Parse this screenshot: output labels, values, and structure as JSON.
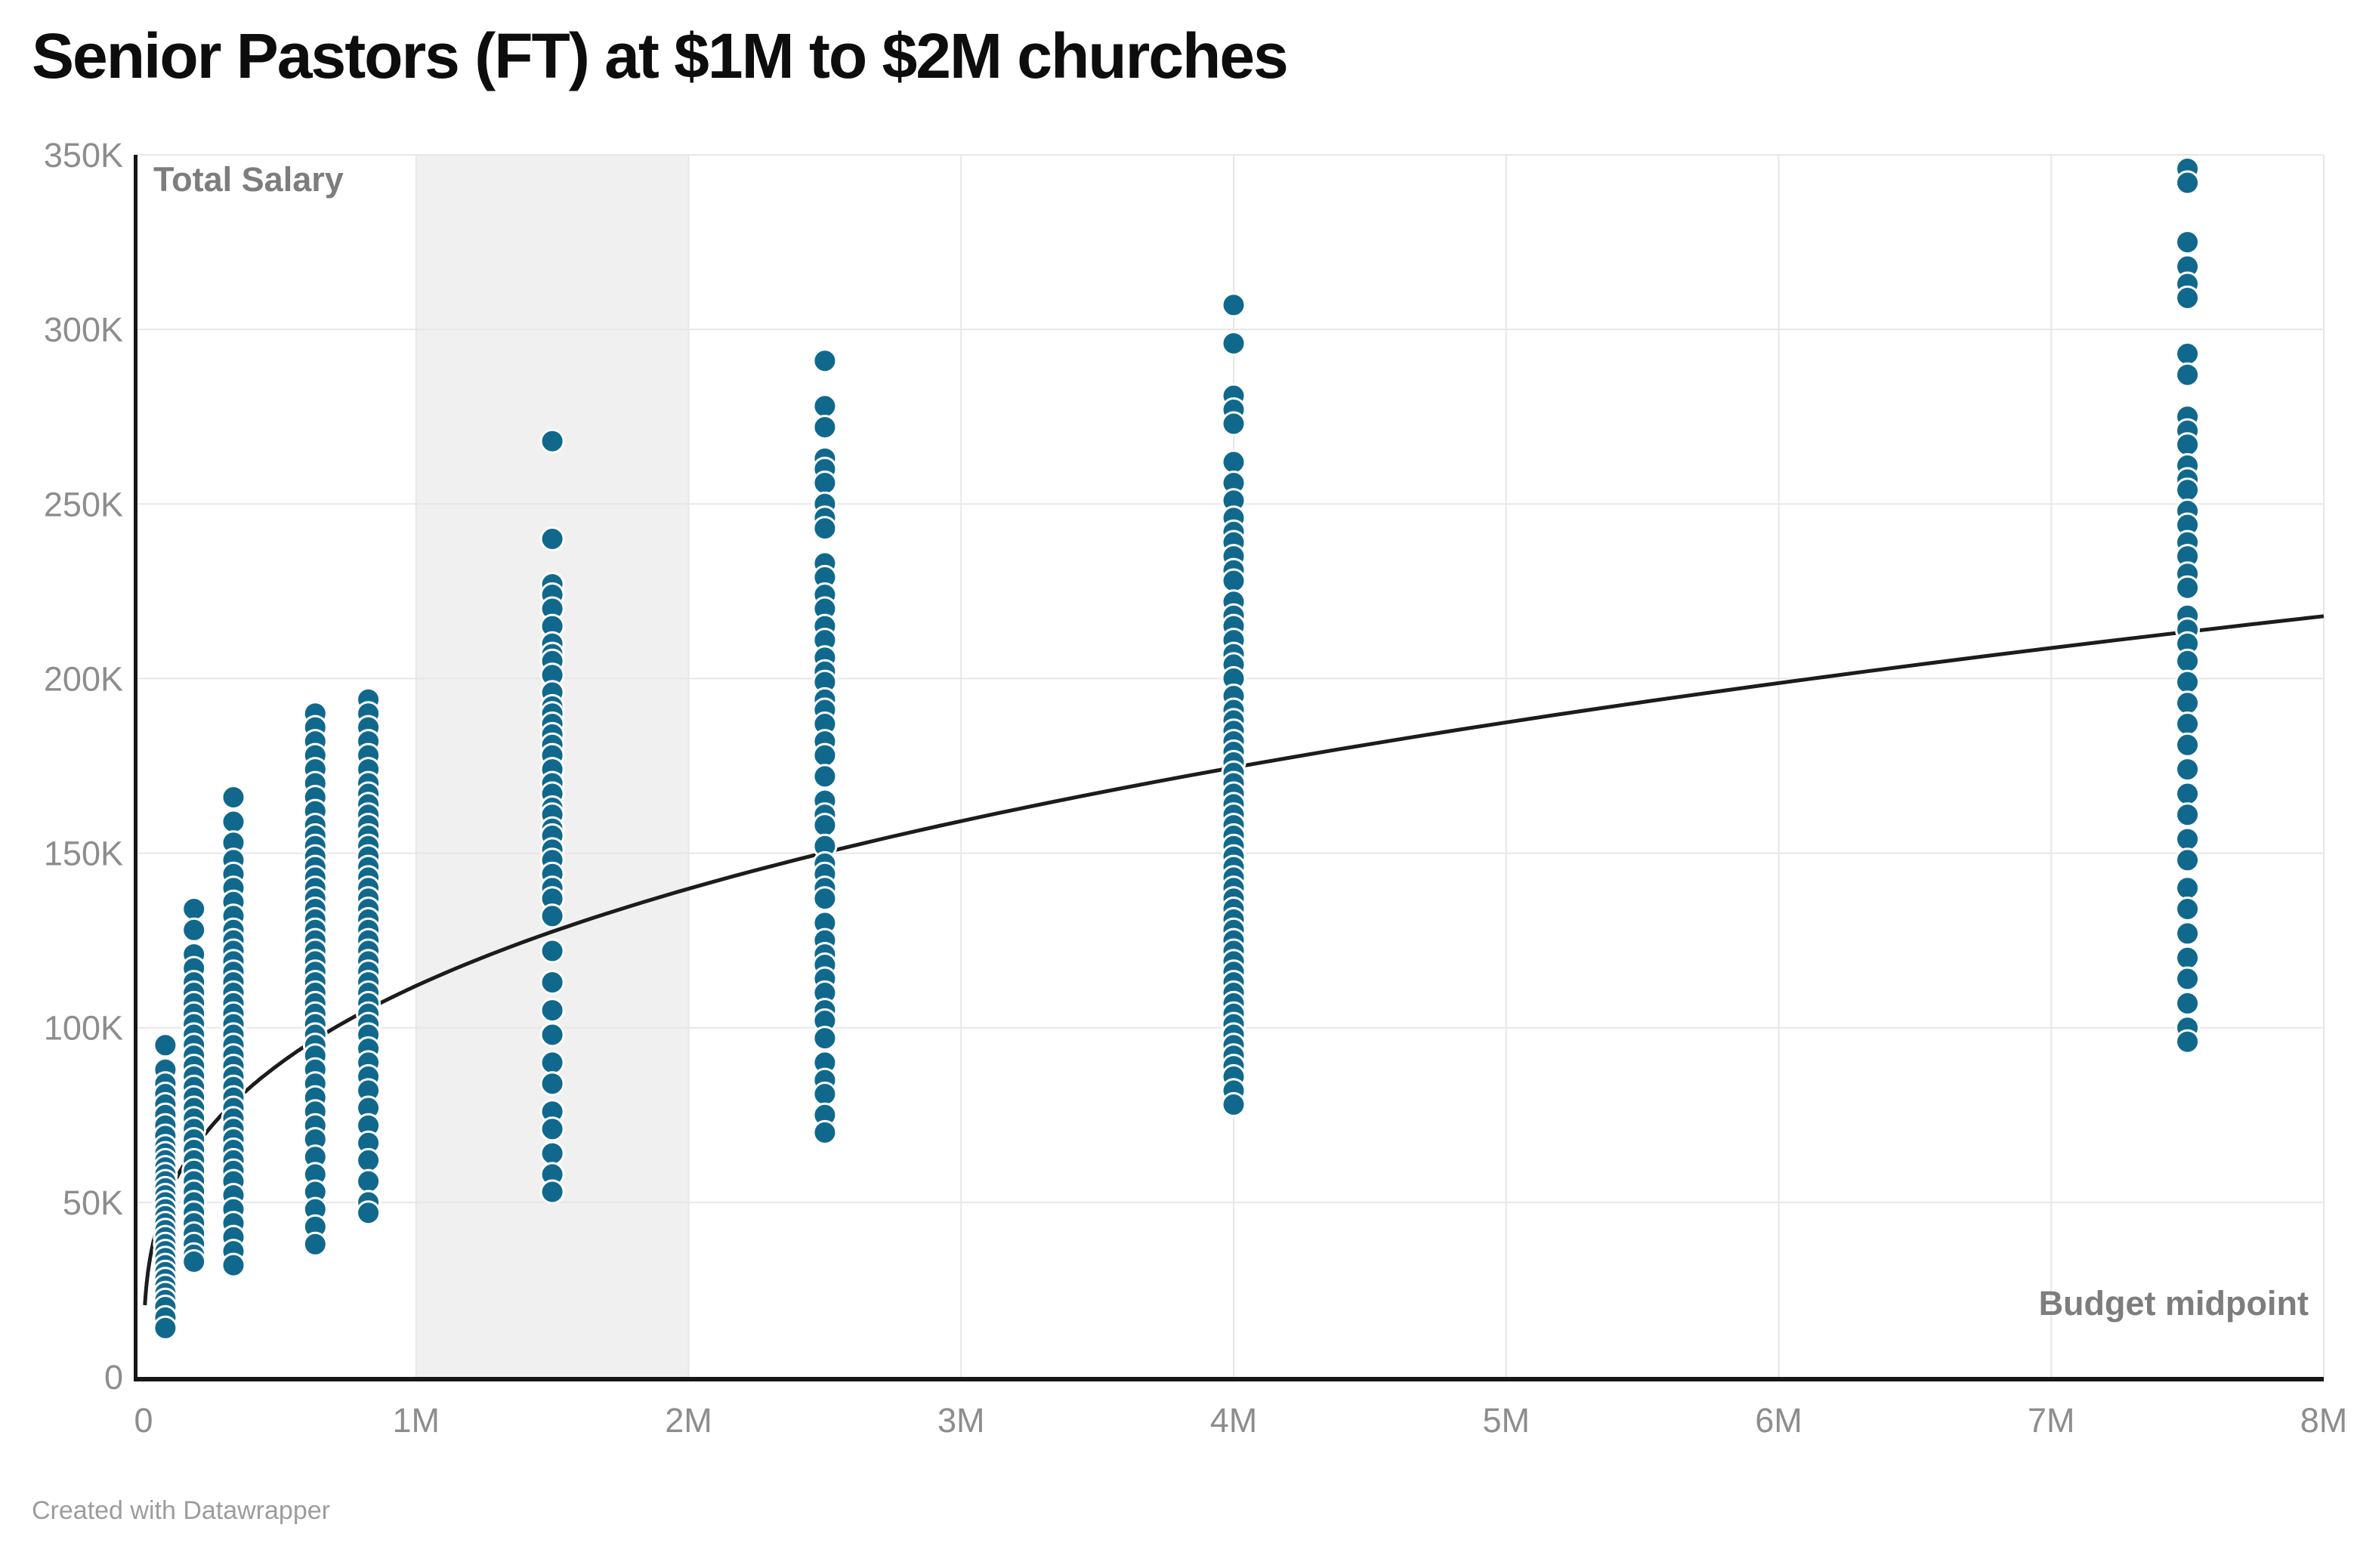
{
  "title": "Senior Pastors (FT) at $1M to $2M churches",
  "footer": "Created with Datawrapper",
  "colors": {
    "point_fill": "#11688d",
    "point_stroke": "#ffffff",
    "trend_line": "#1c1c1c",
    "grid_line": "#e7e7e7",
    "highlight_band": "#f0f0f0",
    "axis_line": "#161616",
    "tick_text": "#8d8d8d",
    "inner_label_text": "#7d7d7d",
    "title_text": "#0d0d0d",
    "footer_text": "#9c9c9c"
  },
  "chart_data": {
    "type": "scatter",
    "title": "Senior Pastors (FT) at $1M to $2M churches",
    "xlabel": "Budget midpoint",
    "ylabel": "Total Salary",
    "x_unit": "church budget midpoint, millions USD",
    "y_unit": "total salary, thousands USD",
    "xlim": [
      0,
      8
    ],
    "ylim": [
      0,
      350
    ],
    "grid": true,
    "legend": "none",
    "highlight_band_x": [
      1,
      2
    ],
    "x_ticks": [
      {
        "value": 0,
        "label": "0"
      },
      {
        "value": 1,
        "label": "1M"
      },
      {
        "value": 2,
        "label": "2M"
      },
      {
        "value": 3,
        "label": "3M"
      },
      {
        "value": 4,
        "label": "4M"
      },
      {
        "value": 5,
        "label": "5M"
      },
      {
        "value": 6,
        "label": "6M"
      },
      {
        "value": 7,
        "label": "7M"
      },
      {
        "value": 8,
        "label": "8M"
      }
    ],
    "y_ticks": [
      {
        "value": 0,
        "label": "0"
      },
      {
        "value": 50,
        "label": "50K"
      },
      {
        "value": 100,
        "label": "100K"
      },
      {
        "value": 150,
        "label": "150K"
      },
      {
        "value": 200,
        "label": "200K"
      },
      {
        "value": 250,
        "label": "250K"
      },
      {
        "value": 300,
        "label": "300K"
      },
      {
        "value": 350,
        "label": "350K"
      }
    ],
    "trend_line": {
      "type": "power",
      "formula": "salary_k = 112 * budget_m^0.32",
      "coef": 112,
      "exponent": 0.32,
      "x_start": 0.005,
      "x_end": 8
    },
    "series": [
      {
        "budget_m": 0.08,
        "salaries_k": [
          95,
          88,
          84,
          81,
          78,
          75,
          72,
          69,
          66,
          64,
          62,
          60,
          58,
          56,
          54,
          52,
          50,
          48,
          46,
          44,
          42,
          40,
          38,
          36,
          34,
          32,
          30,
          28,
          26,
          24,
          22,
          20,
          17,
          14
        ]
      },
      {
        "budget_m": 0.185,
        "salaries_k": [
          134,
          128,
          121,
          117,
          113,
          110,
          107,
          104,
          101,
          98,
          95,
          92,
          89,
          86,
          83,
          80,
          77,
          74,
          71,
          68,
          65,
          62,
          59,
          56,
          53,
          50,
          47,
          44,
          41,
          38,
          35,
          33
        ]
      },
      {
        "budget_m": 0.33,
        "salaries_k": [
          166,
          159,
          153,
          148,
          144,
          140,
          136,
          132,
          128,
          125,
          122,
          119,
          116,
          113,
          110,
          107,
          104,
          101,
          98,
          95,
          92,
          89,
          86,
          83,
          80,
          77,
          74,
          71,
          68,
          65,
          62,
          59,
          56,
          52,
          48,
          44,
          40,
          36,
          32
        ]
      },
      {
        "budget_m": 0.63,
        "salaries_k": [
          190,
          186,
          182,
          178,
          174,
          170,
          166,
          162,
          158,
          155,
          152,
          149,
          146,
          143,
          140,
          137,
          134,
          131,
          128,
          125,
          122,
          119,
          116,
          113,
          110,
          107,
          104,
          101,
          98,
          95,
          92,
          88,
          84,
          80,
          76,
          72,
          68,
          63,
          58,
          53,
          48,
          43,
          38
        ]
      },
      {
        "budget_m": 0.825,
        "salaries_k": [
          194,
          190,
          186,
          182,
          178,
          174,
          170,
          167,
          164,
          161,
          158,
          155,
          152,
          149,
          146,
          143,
          140,
          137,
          134,
          131,
          128,
          125,
          122,
          119,
          116,
          113,
          110,
          107,
          104,
          101,
          98,
          94,
          90,
          86,
          82,
          77,
          72,
          67,
          62,
          56,
          50,
          47
        ]
      },
      {
        "budget_m": 1.5,
        "salaries_k": [
          268,
          240,
          227,
          224,
          220,
          215,
          210,
          207,
          205,
          201,
          196,
          192,
          190,
          187,
          184,
          181,
          178,
          174,
          170,
          167,
          163,
          161,
          157,
          155,
          151,
          148,
          144,
          140,
          137,
          132,
          122,
          113,
          105,
          98,
          90,
          84,
          76,
          71,
          64,
          58,
          53
        ]
      },
      {
        "budget_m": 2.5,
        "salaries_k": [
          291,
          278,
          272,
          263,
          260,
          256,
          250,
          246,
          243,
          233,
          229,
          224,
          220,
          215,
          211,
          206,
          202,
          199,
          194,
          191,
          187,
          182,
          178,
          172,
          165,
          161,
          158,
          152,
          147,
          144,
          140,
          137,
          130,
          125,
          121,
          118,
          114,
          110,
          105,
          102,
          97,
          90,
          85,
          81,
          75,
          70
        ]
      },
      {
        "budget_m": 4,
        "salaries_k": [
          307,
          296,
          281,
          277,
          273,
          262,
          256,
          251,
          246,
          242,
          239,
          235,
          231,
          228,
          222,
          218,
          215,
          211,
          207,
          204,
          200,
          195,
          191,
          188,
          185,
          182,
          179,
          176,
          173,
          170,
          167,
          164,
          161,
          158,
          155,
          152,
          149,
          146,
          143,
          140,
          137,
          134,
          131,
          128,
          125,
          122,
          119,
          116,
          113,
          110,
          107,
          104,
          101,
          98,
          95,
          92,
          89,
          86,
          82,
          78
        ]
      },
      {
        "budget_m": 7.5,
        "salaries_k": [
          346,
          342,
          325,
          318,
          313,
          309,
          293,
          287,
          275,
          271,
          267,
          261,
          257,
          254,
          248,
          244,
          239,
          235,
          230,
          226,
          218,
          214,
          210,
          205,
          199,
          193,
          187,
          181,
          174,
          167,
          161,
          154,
          148,
          140,
          134,
          127,
          120,
          114,
          107,
          100,
          96
        ]
      }
    ]
  }
}
